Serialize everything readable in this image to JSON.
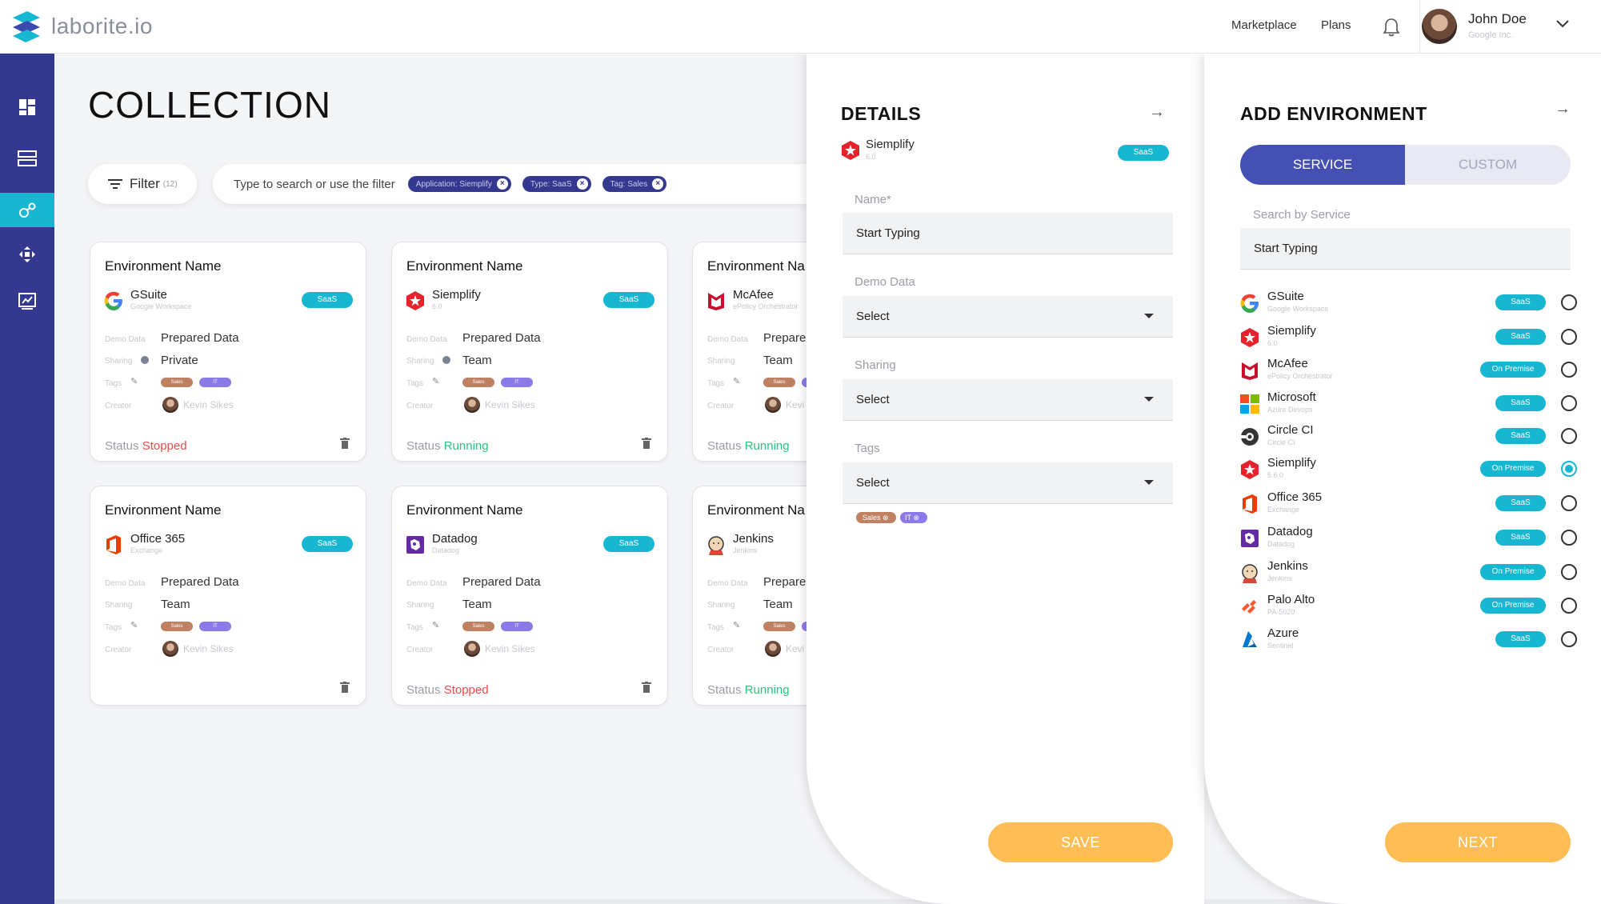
{
  "brand": {
    "name": "laborite.io"
  },
  "topnav": {
    "marketplace": "Marketplace",
    "plans": "Plans"
  },
  "user": {
    "name": "John Doe",
    "org": "Google Inc."
  },
  "page": {
    "title": "COLLECTION"
  },
  "filter": {
    "label": "Filter",
    "count": "(12)"
  },
  "search": {
    "placeholder": "Type to search or use the filter",
    "chips": [
      "Application: Siemplify",
      "Type: SaaS",
      "Tag: Sales"
    ]
  },
  "card_labels": {
    "env_name": "Environment Name",
    "demo": "Demo Data",
    "sharing": "Sharing",
    "tags": "Tags",
    "creator": "Creator",
    "status": "Status",
    "tag_sales": "Sales",
    "tag_it": "IT"
  },
  "cards": [
    {
      "env": "Environment Name",
      "app": "GSuite",
      "sub": "Google Workspace",
      "badge": "SaaS",
      "demo": "Prepared Data",
      "sharing": "Private",
      "creator": "Kevin Sikes",
      "status": "Stopped"
    },
    {
      "env": "Environment Name",
      "app": "Siemplify",
      "sub": "6.0",
      "badge": "SaaS",
      "demo": "Prepared Data",
      "sharing": "Team",
      "creator": "Kevin Sikes",
      "status": "Running"
    },
    {
      "env": "Environment Na",
      "app": "McAfee",
      "sub": "ePolicy Orchestrator",
      "badge": "",
      "demo": "Prepare",
      "sharing": "Team",
      "creator": "Kevi",
      "status": "Running"
    },
    {
      "env": "Environment Name",
      "app": "Office 365",
      "sub": "Exchange",
      "badge": "SaaS",
      "demo": "Prepared Data",
      "sharing": "Team",
      "creator": "Kevin Sikes",
      "status": ""
    },
    {
      "env": "Environment Name",
      "app": "Datadog",
      "sub": "Datadog",
      "badge": "SaaS",
      "demo": "Prepared Data",
      "sharing": "Team",
      "creator": "Kevin Sikes",
      "status": "Stopped"
    },
    {
      "env": "Environment Na",
      "app": "Jenkins",
      "sub": "Jenkins",
      "badge": "",
      "demo": "Prepare",
      "sharing": "Team",
      "creator": "Kevi",
      "status": "Running"
    }
  ],
  "details": {
    "title": "DETAILS",
    "app": "Siemplify",
    "sub": "6.0",
    "badge": "SaaS",
    "name_label": "Name*",
    "name_placeholder": "Start Typing",
    "demo_label": "Demo Data",
    "demo_value": "Select",
    "sharing_label": "Sharing",
    "sharing_value": "Select",
    "tags_label": "Tags",
    "tags_value": "Select",
    "tags": [
      "Sales",
      "IT"
    ],
    "save": "SAVE"
  },
  "add_env": {
    "title": "ADD ENVIRONMENT",
    "tab_service": "SERVICE",
    "tab_custom": "CUSTOM",
    "search_label": "Search by Service",
    "search_placeholder": "Start Typing",
    "next": "NEXT",
    "services": [
      {
        "name": "GSuite",
        "sub": "Google Workspace",
        "badge": "SaaS",
        "icon": "gsuite-icon",
        "selected": false
      },
      {
        "name": "Siemplify",
        "sub": "6.0",
        "badge": "SaaS",
        "icon": "siemplify-icon",
        "selected": false
      },
      {
        "name": "McAfee",
        "sub": "ePolicy Orchestrator",
        "badge": "On Premise",
        "icon": "mcafee-icon",
        "selected": false
      },
      {
        "name": "Microsoft",
        "sub": "Azure Devops",
        "badge": "SaaS",
        "icon": "microsoft-icon",
        "selected": false
      },
      {
        "name": "Circle CI",
        "sub": "Circle CI",
        "badge": "SaaS",
        "icon": "circleci-icon",
        "selected": false
      },
      {
        "name": "Siemplify",
        "sub": "5.6.0",
        "badge": "On Premise",
        "icon": "siemplify-icon",
        "selected": true
      },
      {
        "name": "Office 365",
        "sub": "Exchange",
        "badge": "SaaS",
        "icon": "office365-icon",
        "selected": false
      },
      {
        "name": "Datadog",
        "sub": "Datadog",
        "badge": "SaaS",
        "icon": "datadog-icon",
        "selected": false
      },
      {
        "name": "Jenkins",
        "sub": "Jenkins",
        "badge": "On Premise",
        "icon": "jenkins-icon",
        "selected": false
      },
      {
        "name": "Palo Alto",
        "sub": "PA-5020",
        "badge": "On Premise",
        "icon": "paloalto-icon",
        "selected": false
      },
      {
        "name": "Azure",
        "sub": "Sentinel",
        "badge": "SaaS",
        "icon": "azure-icon",
        "selected": false
      }
    ]
  },
  "colors": {
    "sidebar": "#34398f",
    "accent": "#17b7d2",
    "stopped": "#ee4b4b",
    "running": "#2ec27e",
    "button": "#ffbe55"
  }
}
